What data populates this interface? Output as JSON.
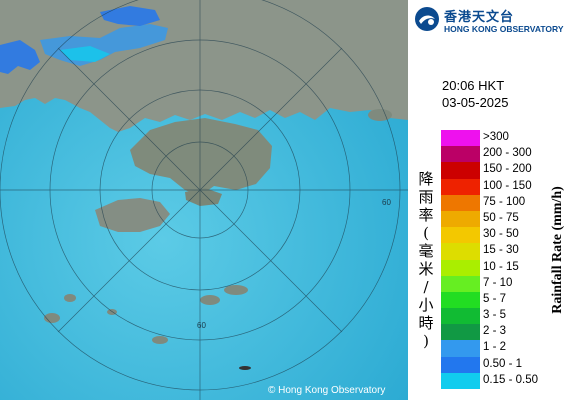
{
  "header": {
    "org_chinese": "香港天文台",
    "org_english": "HONG KONG OBSERVATORY"
  },
  "timestamp": {
    "time": "20:06 HKT",
    "date": "03-05-2025"
  },
  "legend": {
    "title_chinese": "降雨率(毫米/小時)",
    "title_english": "Rainfall Rate (mm/h)",
    "items": [
      {
        "label": ">300",
        "color": "#ee11ee"
      },
      {
        "label": "200 - 300",
        "color": "#bb0066"
      },
      {
        "label": "150 - 200",
        "color": "#cc0000"
      },
      {
        "label": "100 - 150",
        "color": "#ee2200"
      },
      {
        "label": "75 - 100",
        "color": "#ee7700"
      },
      {
        "label": "50 - 75",
        "color": "#eeaa00"
      },
      {
        "label": "30 - 50",
        "color": "#f3c800"
      },
      {
        "label": "15 - 30",
        "color": "#dddd00"
      },
      {
        "label": "10 - 15",
        "color": "#aaee00"
      },
      {
        "label": "7 - 10",
        "color": "#66ee22"
      },
      {
        "label": "5 - 7",
        "color": "#22dd22"
      },
      {
        "label": "3 - 5",
        "color": "#11bb33"
      },
      {
        "label": "2 - 3",
        "color": "#119944"
      },
      {
        "label": "1 - 2",
        "color": "#3399ee"
      },
      {
        "label": "0.50 - 1",
        "color": "#2277ee"
      },
      {
        "label": "0.15 - 0.50",
        "color": "#11ccee"
      }
    ]
  },
  "map": {
    "range_ring_label": "60",
    "copyright": "© Hong Kong Observatory",
    "sea_color": "#3fb8dc",
    "land_color": "#8a9488"
  }
}
